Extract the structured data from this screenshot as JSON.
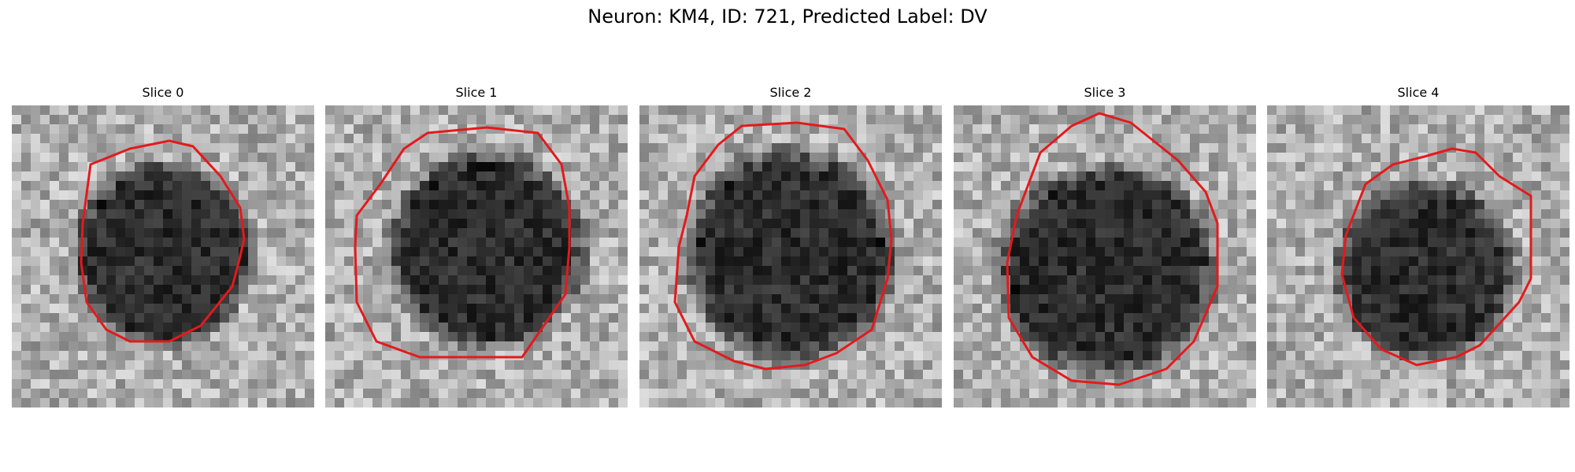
{
  "figure": {
    "title": "Neuron: KM4, ID: 721, Predicted Label: DV"
  },
  "panels": [
    {
      "title": "Slice 0",
      "contour_color": "#e31a1c"
    },
    {
      "title": "Slice 1",
      "contour_color": "#e31a1c"
    },
    {
      "title": "Slice 2",
      "contour_color": "#e31a1c"
    },
    {
      "title": "Slice 3",
      "contour_color": "#e31a1c"
    },
    {
      "title": "Slice 4",
      "contour_color": "#e31a1c"
    }
  ]
}
